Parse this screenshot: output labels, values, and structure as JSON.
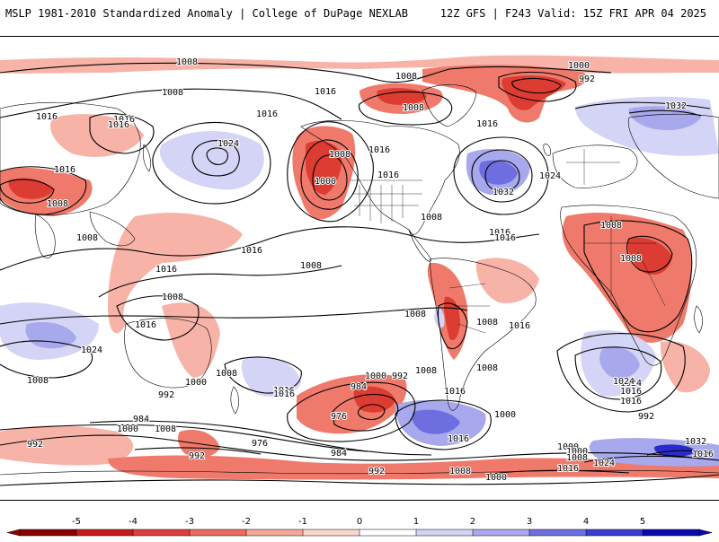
{
  "header": {
    "title": "MSLP 1981-2010 Standardized Anomaly | College of DuPage NEXLAB",
    "run_info": "12Z GFS | F243 Valid: 15Z FRI APR 04 2025"
  },
  "colorbar": {
    "ticks": [
      "-5",
      "-4",
      "-3",
      "-2",
      "-1",
      "0",
      "1",
      "2",
      "3",
      "4",
      "5"
    ],
    "colors": [
      "#8b0000",
      "#c81a1a",
      "#e03c3c",
      "#ee6a5e",
      "#f5a89a",
      "#fbd6cf",
      "#ffffff",
      "#d3d3f5",
      "#a9a9ee",
      "#6f6fe0",
      "#3b3bd0",
      "#0a0ab0"
    ]
  },
  "anomaly_colors": {
    "neg1": "#f7b3a8",
    "neg2": "#ef7a6c",
    "neg3": "#dc3c32",
    "neg4": "#a81818",
    "pos1": "#d4d4f6",
    "pos2": "#a8a8ec",
    "pos3": "#6e6ee0",
    "pos4": "#2b2bcc"
  },
  "isobar_labels": [
    "1008",
    "1008",
    "1008",
    "1000",
    "992",
    "1008",
    "1016",
    "1016",
    "1032",
    "1016",
    "1024",
    "1008",
    "1016",
    "1000",
    "1016",
    "1016",
    "1008",
    "1008",
    "1016",
    "1016",
    "1024",
    "1032",
    "1016",
    "1016",
    "1016",
    "1008",
    "1008",
    "1016",
    "1008",
    "1008",
    "1008",
    "1016",
    "1008",
    "1016",
    "1008",
    "1008",
    "1016",
    "1016",
    "1024",
    "1008",
    "1016",
    "1016",
    "1024",
    "1000",
    "992",
    "1008",
    "1000",
    "1008",
    "984",
    "992",
    "976",
    "984",
    "1000",
    "1008",
    "1016",
    "1024",
    "1016",
    "1000",
    "1016",
    "1000",
    "992",
    "992",
    "976",
    "984",
    "992",
    "1008",
    "1000",
    "992",
    "1000",
    "1008",
    "1016",
    "1024",
    "1032",
    "1016"
  ]
}
